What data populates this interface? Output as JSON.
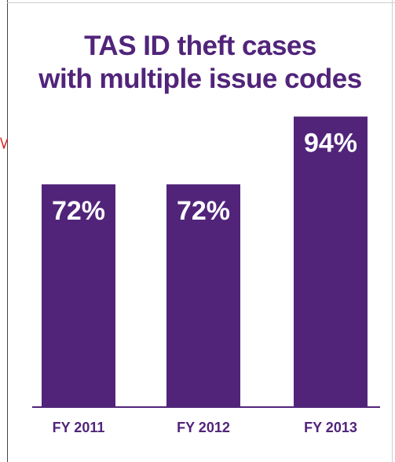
{
  "chart_data": {
    "type": "bar",
    "title_lines": [
      "TAS ID theft cases",
      "with multiple issue codes"
    ],
    "categories": [
      "FY 2011",
      "FY 2012",
      "FY 2013"
    ],
    "values": [
      72,
      72,
      94
    ],
    "value_labels": [
      "72%",
      "72%",
      "94%"
    ],
    "unit": "%",
    "xlabel": "",
    "ylabel": "",
    "ylim": [
      0,
      100
    ],
    "grid": false,
    "legend": "none",
    "bar_color": "#51247a",
    "label_color": "#ffffff",
    "axis_color": "#51247a",
    "tick_label_color": "#51247a"
  }
}
